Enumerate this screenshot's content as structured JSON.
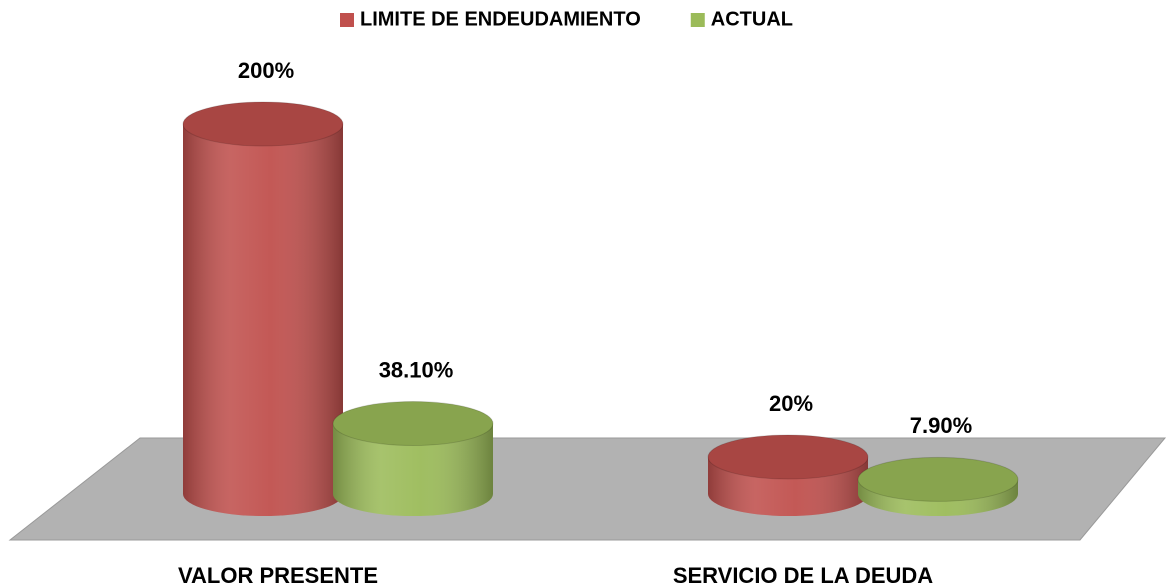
{
  "chart_data": {
    "type": "bar",
    "categories": [
      "VALOR PRESENTE",
      "SERVICIO DE LA DEUDA"
    ],
    "series": [
      {
        "name": "LIMITE DE ENDEUDAMIENTO",
        "color": "#c0504d",
        "values": [
          200,
          20
        ],
        "value_labels": [
          "200%",
          "20%"
        ]
      },
      {
        "name": "ACTUAL",
        "color": "#9bbb59",
        "values": [
          38.1,
          7.9
        ],
        "value_labels": [
          "38.10%",
          "7.90%"
        ]
      }
    ],
    "legend": "top"
  }
}
